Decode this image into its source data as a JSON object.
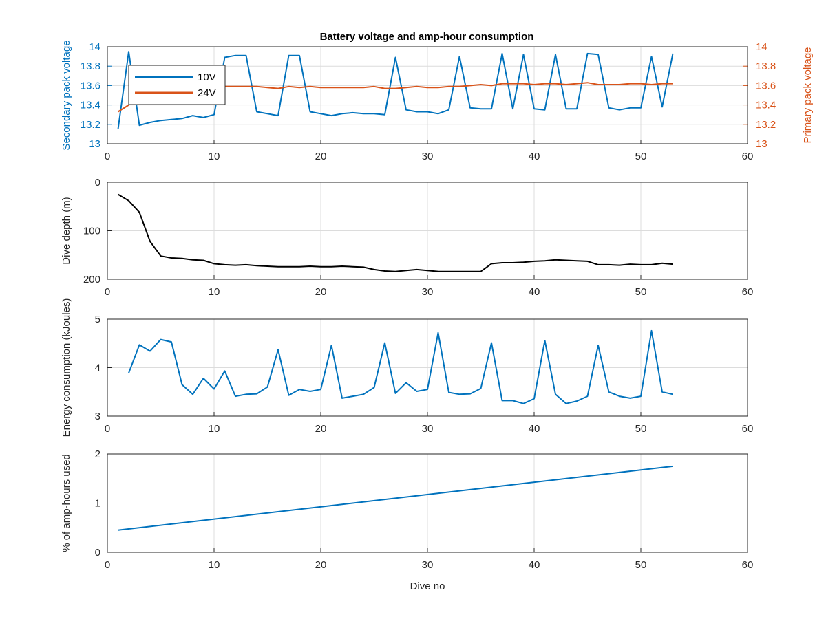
{
  "figure": {
    "title": "Battery voltage and amp-hour consumption",
    "x_tick_labels": [
      "0",
      "10",
      "20",
      "30",
      "40",
      "50",
      "60"
    ],
    "colors": {
      "blue": "#0072BD",
      "orange": "#D95319",
      "black": "#000000",
      "grid": "#DCDCDC",
      "axis": "#262626"
    }
  },
  "chart_data": [
    {
      "type": "line",
      "title": "Battery voltage and amp-hour consumption",
      "xlabel": "",
      "xlim": [
        0,
        60
      ],
      "ylabel": "Secondary pack voltage",
      "ylim": [
        13,
        14
      ],
      "y_tick_labels": [
        "13",
        "13.2",
        "13.4",
        "13.6",
        "13.8",
        "14"
      ],
      "ylabel_right": "Primary pack voltage",
      "ylim_right": [
        13,
        14
      ],
      "y_tick_labels_right": [
        "13",
        "13.2",
        "13.4",
        "13.6",
        "13.8",
        "14"
      ],
      "grid": true,
      "legend_position": "top-left",
      "series": [
        {
          "name": "10V",
          "axis": "left",
          "color": "#0072BD",
          "x": [
            1,
            2,
            3,
            4,
            5,
            6,
            7,
            8,
            9,
            10,
            11,
            12,
            13,
            14,
            15,
            16,
            17,
            18,
            19,
            20,
            21,
            22,
            23,
            24,
            25,
            26,
            27,
            28,
            29,
            30,
            31,
            32,
            33,
            34,
            35,
            36,
            37,
            38,
            39,
            40,
            41,
            42,
            43,
            44,
            45,
            46,
            47,
            48,
            49,
            50,
            51,
            52,
            53
          ],
          "y": [
            13.15,
            13.95,
            13.19,
            13.22,
            13.24,
            13.25,
            13.26,
            13.29,
            13.27,
            13.3,
            13.89,
            13.91,
            13.91,
            13.33,
            13.31,
            13.29,
            13.91,
            13.91,
            13.33,
            13.31,
            13.29,
            13.31,
            13.32,
            13.31,
            13.31,
            13.3,
            13.89,
            13.35,
            13.33,
            13.33,
            13.31,
            13.35,
            13.9,
            13.37,
            13.36,
            13.36,
            13.93,
            13.36,
            13.92,
            13.36,
            13.35,
            13.92,
            13.36,
            13.36,
            13.93,
            13.92,
            13.37,
            13.35,
            13.37,
            13.37,
            13.9,
            13.38,
            13.93
          ]
        },
        {
          "name": "24V",
          "axis": "right",
          "color": "#D95319",
          "x": [
            1,
            2,
            3,
            4,
            5,
            6,
            7,
            8,
            9,
            10,
            11,
            12,
            13,
            14,
            15,
            16,
            17,
            18,
            19,
            20,
            21,
            22,
            23,
            24,
            25,
            26,
            27,
            28,
            29,
            30,
            31,
            32,
            33,
            34,
            35,
            36,
            37,
            38,
            39,
            40,
            41,
            42,
            43,
            44,
            45,
            46,
            47,
            48,
            49,
            50,
            51,
            52,
            53
          ],
          "y": [
            13.33,
            13.4,
            13.46,
            13.5,
            13.53,
            13.55,
            13.56,
            13.57,
            13.58,
            13.58,
            13.59,
            13.59,
            13.59,
            13.59,
            13.58,
            13.57,
            13.59,
            13.58,
            13.59,
            13.58,
            13.58,
            13.58,
            13.58,
            13.58,
            13.59,
            13.57,
            13.57,
            13.58,
            13.59,
            13.58,
            13.58,
            13.59,
            13.59,
            13.6,
            13.61,
            13.6,
            13.62,
            13.62,
            13.62,
            13.61,
            13.62,
            13.62,
            13.61,
            13.62,
            13.63,
            13.61,
            13.61,
            13.61,
            13.62,
            13.62,
            13.61,
            13.62,
            13.62
          ]
        }
      ]
    },
    {
      "type": "line",
      "xlim": [
        0,
        60
      ],
      "ylabel": "Dive depth (m)",
      "ylim": [
        0,
        200
      ],
      "y_reversed": true,
      "y_tick_labels": [
        "0",
        "100",
        "200"
      ],
      "grid": true,
      "series": [
        {
          "color": "#000000",
          "x": [
            1,
            2,
            3,
            4,
            5,
            6,
            7,
            8,
            9,
            10,
            11,
            12,
            13,
            14,
            15,
            16,
            17,
            18,
            19,
            20,
            21,
            22,
            23,
            24,
            25,
            26,
            27,
            28,
            29,
            30,
            31,
            32,
            33,
            34,
            35,
            36,
            37,
            38,
            39,
            40,
            41,
            42,
            43,
            44,
            45,
            46,
            47,
            48,
            49,
            50,
            51,
            52,
            53
          ],
          "y": [
            25,
            38,
            62,
            122,
            152,
            156,
            157,
            160,
            161,
            168,
            170,
            171,
            170,
            172,
            173,
            174,
            174,
            174,
            173,
            174,
            174,
            173,
            174,
            175,
            180,
            183,
            184,
            182,
            180,
            182,
            184,
            184,
            184,
            184,
            184,
            168,
            166,
            166,
            165,
            163,
            162,
            160,
            161,
            162,
            163,
            170,
            170,
            171,
            169,
            170,
            170,
            167,
            169
          ]
        }
      ]
    },
    {
      "type": "line",
      "xlim": [
        0,
        60
      ],
      "ylabel": "Energy consumption (kJoules)",
      "ylim": [
        3,
        5
      ],
      "y_tick_labels": [
        "3",
        "4",
        "5"
      ],
      "grid": true,
      "series": [
        {
          "color": "#0072BD",
          "x": [
            2,
            3,
            4,
            5,
            6,
            7,
            8,
            9,
            10,
            11,
            12,
            13,
            14,
            15,
            16,
            17,
            18,
            19,
            20,
            21,
            22,
            23,
            24,
            25,
            26,
            27,
            28,
            29,
            30,
            31,
            32,
            33,
            34,
            35,
            36,
            37,
            38,
            39,
            40,
            41,
            42,
            43,
            44,
            45,
            46,
            47,
            48,
            49,
            50,
            51,
            52,
            53
          ],
          "y": [
            3.89,
            4.47,
            4.34,
            4.58,
            4.53,
            3.65,
            3.45,
            3.78,
            3.56,
            3.93,
            3.41,
            3.45,
            3.46,
            3.6,
            4.37,
            3.43,
            3.55,
            3.51,
            3.55,
            4.46,
            3.37,
            3.41,
            3.45,
            3.59,
            4.51,
            3.47,
            3.69,
            3.51,
            3.55,
            4.72,
            3.49,
            3.45,
            3.46,
            3.57,
            4.51,
            3.32,
            3.32,
            3.26,
            3.36,
            4.56,
            3.45,
            3.26,
            3.31,
            3.41,
            4.46,
            3.5,
            3.41,
            3.37,
            3.41,
            4.76,
            3.5,
            3.45
          ]
        }
      ]
    },
    {
      "type": "line",
      "xlim": [
        0,
        60
      ],
      "xlabel": "Dive no",
      "ylabel": "% of amp-hours used",
      "ylim": [
        0,
        2
      ],
      "y_tick_labels": [
        "0",
        "1",
        "2"
      ],
      "grid": true,
      "series": [
        {
          "color": "#0072BD",
          "x": [
            1,
            53
          ],
          "y": [
            0.45,
            1.75
          ]
        }
      ]
    }
  ]
}
